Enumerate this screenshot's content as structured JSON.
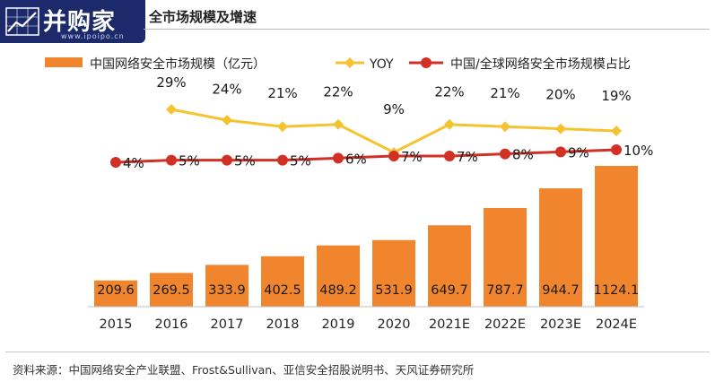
{
  "header": {
    "logo_text": "并购家",
    "logo_url": "www.ipoipo.cn",
    "title": "全市场规模及增速"
  },
  "colors": {
    "bar": "#f0852d",
    "yoy": "#f6c330",
    "share": "#d23024",
    "logo_bg": "#1c2a6b",
    "axis": "#bfbfbf"
  },
  "chart_data": {
    "type": "bar",
    "categories": [
      "2015",
      "2016",
      "2017",
      "2018",
      "2019",
      "2020",
      "2021E",
      "2022E",
      "2023E",
      "2024E"
    ],
    "series": [
      {
        "name": "中国网络安全市场规模（亿元）",
        "type": "bar",
        "values": [
          209.6,
          269.5,
          333.9,
          402.5,
          489.2,
          531.9,
          649.7,
          787.7,
          944.7,
          1124.1
        ],
        "labels": [
          "209.6",
          "269.5",
          "333.9",
          "402.5",
          "489.2",
          "531.9",
          "649.7",
          "787.7",
          "944.7",
          "1124.1"
        ]
      },
      {
        "name": "YOY",
        "type": "line",
        "values": [
          null,
          29,
          24,
          21,
          22,
          9,
          22,
          21,
          20,
          19
        ],
        "labels": [
          null,
          "29%",
          "24%",
          "21%",
          "22%",
          "9%",
          "22%",
          "21%",
          "20%",
          "19%"
        ]
      },
      {
        "name": "中国/全球网络安全市场规模占比",
        "type": "line",
        "values": [
          4,
          5,
          5,
          5,
          6,
          7,
          7,
          8,
          9,
          10
        ],
        "labels": [
          "4%",
          "5%",
          "5%",
          "5%",
          "6%",
          "7%",
          "7%",
          "8%",
          "9%",
          "10%"
        ]
      }
    ],
    "legend_position": "top",
    "grid": false
  },
  "footer": {
    "source": "资料来源：中国网络安全产业联盟、Frost&Sullivan、亚信安全招股说明书、天风证券研究所"
  }
}
